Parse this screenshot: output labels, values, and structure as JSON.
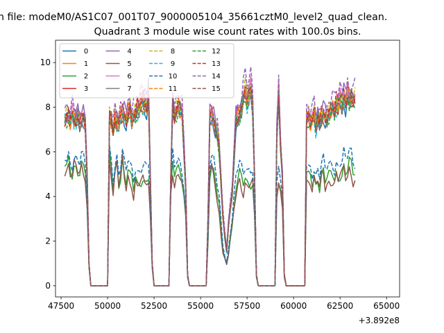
{
  "chart_data": {
    "type": "line",
    "suptitle": "n file: modeM0/AS1C07_001T07_9000005104_35661cztM0_level2_quad_clean.",
    "title": "Quadrant 3 module wise count rates with 100.0s bins.",
    "xlabel": "",
    "ylabel": "",
    "x_offset_label": "+3.892e8",
    "xlim": [
      47200,
      65700
    ],
    "ylim": [
      -0.5,
      11
    ],
    "xticks": [
      47500,
      50000,
      52500,
      55000,
      57500,
      60000,
      62500,
      65000
    ],
    "xtick_labels": [
      "47500",
      "50000",
      "52500",
      "55000",
      "57500",
      "60000",
      "62500",
      "65000"
    ],
    "yticks": [
      0,
      2,
      4,
      6,
      8,
      10
    ],
    "ytick_labels": [
      "0",
      "2",
      "4",
      "6",
      "8",
      "10"
    ],
    "grid": false,
    "legend_position": "upper-left",
    "legend_columns": 4,
    "x_start": 47700,
    "x_step": 100,
    "envelope": {
      "hi": [
        7.6,
        7.7,
        7.8,
        7.5,
        7.9,
        7.7,
        7.6,
        7.8,
        7.5,
        7.7,
        7.8,
        7.4,
        5.0,
        1.0,
        0.0,
        0.0,
        0.0,
        0.0,
        0.0,
        0.0,
        0.0,
        0.0,
        0.0,
        0.0,
        7.8,
        7.6,
        7.0,
        7.7,
        7.5,
        7.4,
        7.8,
        8.0,
        7.9,
        7.6,
        8.0,
        8.3,
        7.6,
        7.8,
        7.9,
        8.2,
        8.1,
        8.4,
        8.6,
        8.5,
        8.2,
        8.9,
        5.0,
        1.0,
        0.0,
        0.0,
        0.0,
        0.0,
        0.0,
        0.0,
        0.0,
        0.0,
        0.0,
        5.0,
        8.4,
        7.8,
        8.0,
        8.3,
        8.1,
        7.9,
        6.4,
        4.5,
        0.5,
        0.0,
        0.0,
        0.0,
        0.0,
        0.0,
        0.0,
        0.0,
        0.0,
        0.0,
        0.0,
        3.0,
        7.8,
        7.9,
        7.7,
        7.2,
        7.1,
        6.4,
        4.8,
        3.2,
        2.3,
        1.6,
        2.8,
        3.6,
        4.4,
        6.0,
        7.7,
        7.8,
        7.9,
        8.2,
        8.7,
        9.0,
        8.6,
        8.8,
        9.1,
        8.4,
        5.0,
        0.5,
        0.0,
        0.0,
        0.0,
        0.0,
        0.0,
        0.0,
        0.0,
        0.0,
        0.0,
        0.0,
        7.0,
        9.0,
        6.5,
        5.0,
        0.5,
        0.0,
        0.0,
        0.0,
        0.0,
        0.0,
        0.0,
        0.0,
        0.0,
        0.0,
        0.0,
        0.0,
        7.7,
        7.8,
        7.5,
        7.6,
        7.9,
        7.4,
        7.7,
        7.5,
        7.9,
        8.0,
        7.8,
        7.7,
        8.0,
        8.1,
        8.2,
        8.0,
        8.4,
        8.3,
        8.6,
        8.5,
        8.8,
        8.4,
        8.9,
        8.6,
        8.7,
        8.5,
        8.6
      ],
      "lo": [
        5.3,
        5.2,
        5.4,
        5.1,
        5.0,
        5.3,
        5.2,
        5.1,
        5.0,
        5.2,
        5.1,
        5.0,
        3.5,
        0.8,
        0.0,
        0.0,
        0.0,
        0.0,
        0.0,
        0.0,
        0.0,
        0.0,
        0.0,
        0.0,
        5.6,
        5.1,
        4.3,
        5.0,
        5.4,
        4.5,
        4.9,
        5.5,
        4.7,
        4.5,
        5.0,
        4.5,
        4.6,
        4.2,
        4.7,
        4.3,
        4.6,
        4.7,
        4.5,
        4.4,
        4.7,
        4.6,
        3.0,
        0.8,
        0.0,
        0.0,
        0.0,
        0.0,
        0.0,
        0.0,
        0.0,
        0.0,
        0.0,
        4.0,
        5.1,
        4.8,
        5.0,
        4.9,
        5.0,
        4.8,
        4.0,
        3.0,
        0.4,
        0.0,
        0.0,
        0.0,
        0.0,
        0.0,
        0.0,
        0.0,
        0.0,
        0.0,
        0.0,
        2.0,
        5.0,
        5.1,
        4.9,
        4.6,
        3.8,
        3.2,
        2.4,
        1.6,
        1.2,
        0.9,
        1.4,
        2.2,
        2.6,
        3.3,
        4.2,
        4.6,
        4.7,
        4.5,
        4.4,
        4.6,
        4.3,
        4.5,
        4.6,
        4.4,
        3.0,
        0.4,
        0.0,
        0.0,
        0.0,
        0.0,
        0.0,
        0.0,
        0.0,
        0.0,
        0.0,
        0.0,
        4.0,
        4.6,
        4.0,
        3.5,
        0.4,
        0.0,
        0.0,
        0.0,
        0.0,
        0.0,
        0.0,
        0.0,
        0.0,
        0.0,
        0.0,
        0.0,
        4.9,
        4.6,
        4.7,
        4.5,
        4.8,
        4.3,
        4.7,
        4.4,
        4.8,
        4.9,
        4.5,
        4.7,
        4.6,
        4.7,
        4.9,
        4.6,
        4.8,
        4.7,
        5.0,
        4.8,
        5.1,
        4.9,
        5.0,
        5.2,
        5.1,
        4.9,
        4.8
      ]
    },
    "series": [
      {
        "name": "0",
        "color": "#1f77b4",
        "dash": "solid",
        "level": 0.88
      },
      {
        "name": "1",
        "color": "#ff7f0e",
        "dash": "solid",
        "level": 0.9
      },
      {
        "name": "2",
        "color": "#2ca02c",
        "dash": "solid",
        "level": 0.05
      },
      {
        "name": "3",
        "color": "#d62728",
        "dash": "solid",
        "level": 0.93
      },
      {
        "name": "4",
        "color": "#9467bd",
        "dash": "solid",
        "level": 1.0
      },
      {
        "name": "5",
        "color": "#8c564b",
        "dash": "solid",
        "level": 0.0
      },
      {
        "name": "6",
        "color": "#e377c2",
        "dash": "solid",
        "level": 0.95
      },
      {
        "name": "7",
        "color": "#7f7f7f",
        "dash": "solid",
        "level": 0.92
      },
      {
        "name": "8",
        "color": "#bcbd22",
        "dash": "dashed",
        "level": 0.97
      },
      {
        "name": "9",
        "color": "#17becf",
        "dash": "dashed",
        "level": 0.87
      },
      {
        "name": "10",
        "color": "#1f77b4",
        "dash": "dashed",
        "level": 0.2
      },
      {
        "name": "11",
        "color": "#ff7f0e",
        "dash": "dashed",
        "level": 0.94
      },
      {
        "name": "12",
        "color": "#2ca02c",
        "dash": "dashed",
        "level": 0.9
      },
      {
        "name": "13",
        "color": "#d62728",
        "dash": "dashed",
        "level": 0.96
      },
      {
        "name": "14",
        "color": "#9467bd",
        "dash": "dashed",
        "level": 1.08
      },
      {
        "name": "15",
        "color": "#8c564b",
        "dash": "dashed",
        "level": 0.91
      }
    ]
  }
}
